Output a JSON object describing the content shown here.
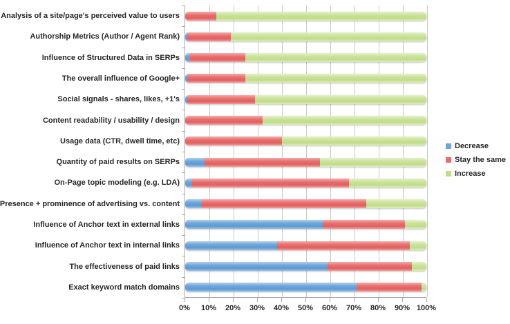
{
  "chart_data": {
    "type": "bar",
    "orientation": "horizontal",
    "stacked": true,
    "stack_total": 100,
    "title": "",
    "xlabel": "",
    "ylabel": "",
    "grid": true,
    "categories": [
      "Analysis of a site/page's perceived value to users",
      "Authorship Metrics (Author / Agent Rank)",
      "Influence of Structured Data in SERPs",
      "The overall influence of Google+",
      "Social signals - shares, likes, +1's",
      "Content readability / usability / design",
      "Usage data (CTR, dwell time, etc)",
      "Quantity of paid results on SERPs",
      "On-Page topic modeling (e.g. LDA)",
      "Presence + prominence of advertising vs. content",
      "Influence of Anchor text in external links",
      "Influence of Anchor text in internal links",
      "The effectiveness of paid links",
      "Exact keyword match domains"
    ],
    "series": [
      {
        "name": "Decrease",
        "color": "#6fa4da",
        "css_class": "seg-decrease",
        "values": [
          0,
          1,
          2,
          1,
          1,
          0,
          0,
          8,
          3,
          7,
          57,
          38,
          59,
          71
        ]
      },
      {
        "name": "Stay the same",
        "color": "#e76f6e",
        "css_class": "seg-stay",
        "values": [
          13,
          18,
          23,
          24,
          28,
          32,
          40,
          48,
          65,
          68,
          34,
          55,
          35,
          27
        ]
      },
      {
        "name": "Increase",
        "color": "#c1dc89",
        "css_class": "seg-increase",
        "values": [
          87,
          81,
          75,
          75,
          71,
          68,
          60,
          44,
          32,
          25,
          9,
          7,
          6,
          2
        ]
      }
    ],
    "x_axis": {
      "min": 0,
      "max": 100,
      "tick_labels": [
        "0%",
        "10%",
        "20%",
        "30%",
        "40%",
        "50%",
        "60%",
        "70%",
        "80%",
        "90%",
        "100%"
      ]
    },
    "legend": {
      "position": "right",
      "entries": [
        "Decrease",
        "Stay the same",
        "Increase"
      ]
    },
    "colors": {
      "background": "#ffffff",
      "gridline": "#c9c9c9",
      "axis": "#a6a6a6",
      "text": "#262626"
    }
  }
}
